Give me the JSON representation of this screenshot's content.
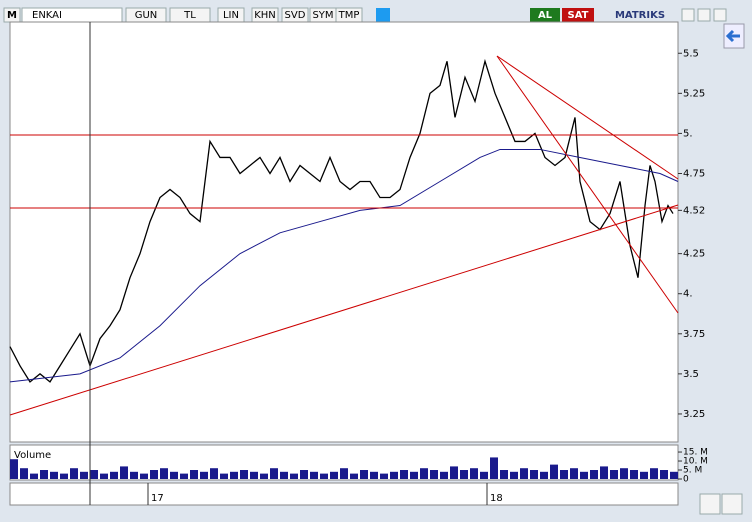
{
  "toolbar": {
    "logo": "M",
    "symbol": "ENKAI",
    "buttons": [
      "GUN",
      "TL",
      "LIN",
      "KHN",
      "SVD",
      "SYM",
      "TMP"
    ],
    "buy": "AL",
    "sell": "SAT",
    "brand": "MATRIKS"
  },
  "chart_data": [
    {
      "type": "line",
      "xlim": [
        0,
        334
      ],
      "ylim": [
        3.075,
        5.695
      ],
      "xticks": [
        {
          "value": 69,
          "label": "17"
        },
        {
          "value": 238.5,
          "label": "18"
        }
      ],
      "yticks": [
        5.5,
        5.25,
        {
          "value": 5,
          "label": "5."
        },
        4.75,
        4.52,
        4.25,
        {
          "value": 4,
          "label": "4."
        },
        3.75,
        3.5,
        3.25
      ],
      "series": [
        {
          "color": "#000000",
          "x": [
            0,
            5,
            10,
            15,
            20,
            25,
            30,
            35,
            40,
            45,
            50,
            55,
            60,
            65,
            70,
            75,
            80,
            85,
            90,
            95,
            97.5,
            100,
            105,
            110,
            115,
            120,
            125,
            130,
            135,
            140,
            145,
            150,
            155,
            160,
            165,
            170,
            175,
            180,
            185,
            190,
            195,
            200,
            205,
            210,
            215,
            218.5,
            222.5,
            227.5,
            232.5,
            237.5,
            242.5,
            247.5,
            252.5,
            257.5,
            262.5,
            267.5,
            272.5,
            277.5,
            282.5,
            285,
            290,
            295,
            300,
            305,
            310,
            314,
            317.5,
            320,
            322.5,
            326,
            329,
            331.5
          ],
          "values": [
            3.67,
            3.55,
            3.45,
            3.5,
            3.45,
            3.55,
            3.65,
            3.75,
            3.55,
            3.72,
            3.8,
            3.9,
            4.1,
            4.25,
            4.45,
            4.6,
            4.65,
            4.6,
            4.5,
            4.45,
            4.7,
            4.95,
            4.85,
            4.85,
            4.75,
            4.8,
            4.85,
            4.75,
            4.85,
            4.7,
            4.8,
            4.75,
            4.7,
            4.85,
            4.7,
            4.65,
            4.7,
            4.7,
            4.6,
            4.6,
            4.65,
            4.85,
            5.0,
            5.25,
            5.3,
            5.45,
            5.1,
            5.35,
            5.2,
            5.45,
            5.25,
            5.1,
            4.95,
            4.95,
            5.0,
            4.85,
            4.8,
            4.85,
            5.1,
            4.7,
            4.45,
            4.4,
            4.5,
            4.7,
            4.3,
            4.1,
            4.55,
            4.8,
            4.7,
            4.45,
            4.55,
            4.5
          ]
        },
        {
          "color": "#1a1a8c",
          "x": [
            0,
            35,
            55,
            75,
            95,
            115,
            135,
            155,
            175,
            195,
            215,
            235,
            245,
            265,
            285,
            305,
            325,
            334
          ],
          "values": [
            3.45,
            3.5,
            3.6,
            3.8,
            4.05,
            4.25,
            4.38,
            4.45,
            4.52,
            4.55,
            4.7,
            4.85,
            4.9,
            4.9,
            4.85,
            4.8,
            4.75,
            4.7
          ]
        }
      ]
    },
    {
      "type": "bar",
      "title": "Volume",
      "xlim": [
        0,
        334
      ],
      "ylim": [
        0,
        17.8
      ],
      "color": "#1a1a8c",
      "yticks": [
        {
          "value": 15,
          "label": "15. M"
        },
        {
          "value": 10,
          "label": "10. M"
        },
        {
          "value": 5,
          "label": "5. M"
        },
        0
      ],
      "x": [
        0,
        5,
        10,
        15,
        20,
        25,
        30,
        35,
        40,
        45,
        50,
        55,
        60,
        65,
        70,
        75,
        80,
        85,
        90,
        95,
        100,
        105,
        110,
        115,
        120,
        125,
        130,
        135,
        140,
        145,
        150,
        155,
        160,
        165,
        170,
        175,
        180,
        185,
        190,
        195,
        200,
        205,
        210,
        215,
        220,
        225,
        230,
        235,
        240,
        245,
        250,
        255,
        260,
        265,
        270,
        275,
        280,
        285,
        290,
        295,
        300,
        305,
        310,
        315,
        320,
        325,
        330
      ],
      "values": [
        11,
        6,
        3,
        5,
        4,
        3,
        6,
        4,
        5,
        3,
        4,
        7,
        4,
        3,
        5,
        6,
        4,
        3,
        5,
        4,
        6,
        3,
        4,
        5,
        4,
        3,
        6,
        4,
        3,
        5,
        4,
        3,
        4,
        6,
        3,
        5,
        4,
        3,
        4,
        5,
        4,
        6,
        5,
        4,
        7,
        5,
        6,
        4,
        12,
        5,
        4,
        6,
        5,
        4,
        8,
        5,
        6,
        4,
        5,
        7,
        5,
        6,
        5,
        4,
        6,
        5,
        4
      ]
    }
  ]
}
